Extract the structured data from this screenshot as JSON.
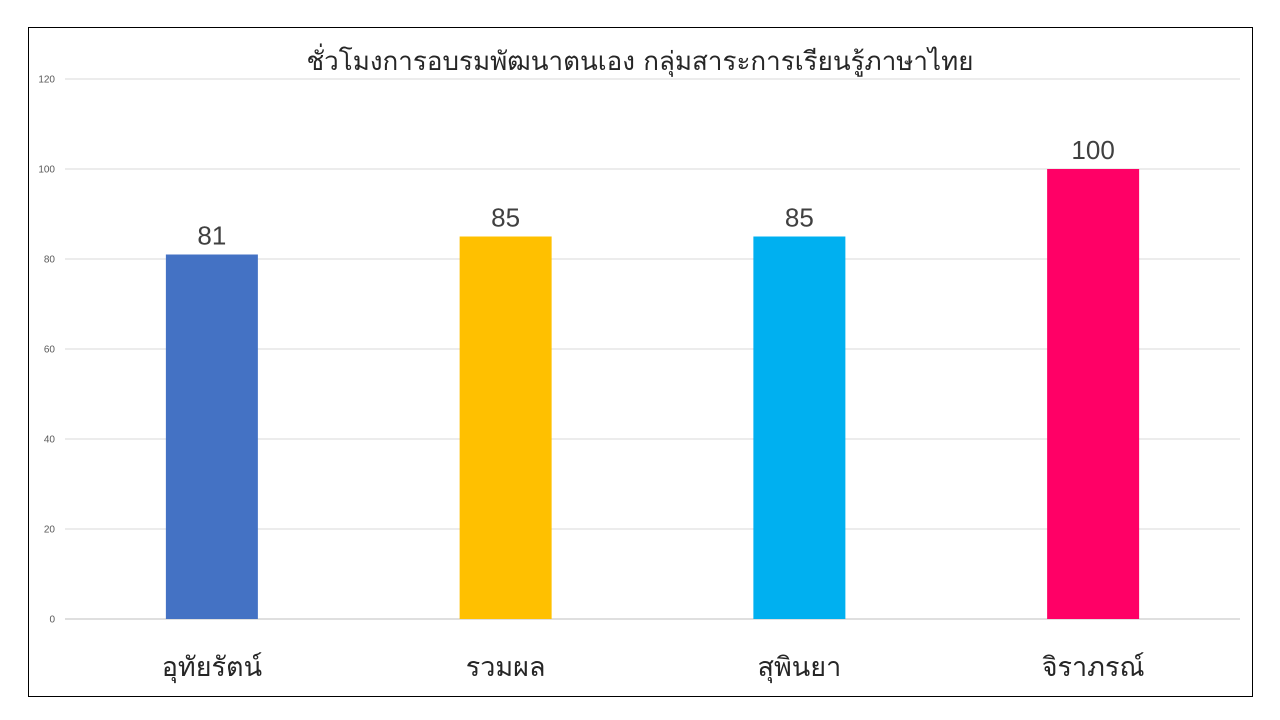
{
  "chart_data": {
    "type": "bar",
    "title": "ชั่วโมงการอบรมพัฒนาตนเอง    กลุ่มสาระการเรียนรู้ภาษาไทย",
    "categories": [
      "อุทัยรัตน์",
      "รวมผล",
      "สุพินยา",
      "จิราภรณ์"
    ],
    "values": [
      81,
      85,
      85,
      100
    ],
    "colors": [
      "#4472C4",
      "#FFC000",
      "#00B0F0",
      "#FF0066"
    ],
    "ylim": [
      0,
      120
    ],
    "yticks": [
      0,
      20,
      40,
      60,
      80,
      100,
      120
    ],
    "grid": true,
    "data_labels": true,
    "legend": "none"
  }
}
